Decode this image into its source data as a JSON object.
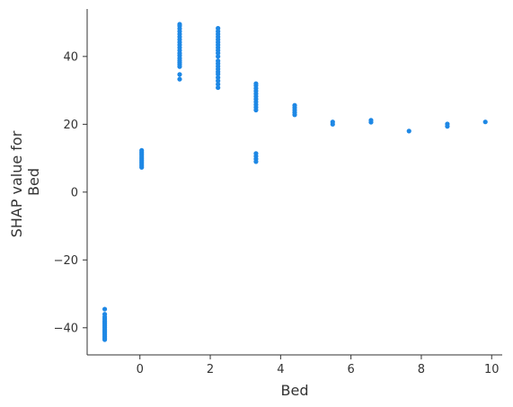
{
  "chart_data": {
    "type": "scatter",
    "xlabel": "Bed",
    "ylabel_lines": [
      "SHAP value for",
      "Bed"
    ],
    "xlim": [
      -1.5,
      10.3
    ],
    "ylim": [
      -48,
      54
    ],
    "xticks": [
      0,
      2,
      4,
      6,
      8,
      10
    ],
    "xtick_labels": [
      "0",
      "2",
      "4",
      "6",
      "8",
      "10"
    ],
    "yticks": [
      -40,
      -20,
      0,
      20,
      40
    ],
    "ytick_labels": [
      "−40",
      "−20",
      "0",
      "20",
      "40"
    ],
    "grid": false,
    "point_color": "#1e88e5",
    "axis_color": "#333333",
    "points": [
      {
        "x": -1.0,
        "y": -34.5
      },
      {
        "x": -1.0,
        "y": -36.0
      },
      {
        "x": -1.0,
        "y": -36.8
      },
      {
        "x": -1.0,
        "y": -37.4
      },
      {
        "x": -1.0,
        "y": -38.0
      },
      {
        "x": -1.0,
        "y": -38.5
      },
      {
        "x": -1.0,
        "y": -39.0
      },
      {
        "x": -1.0,
        "y": -39.5
      },
      {
        "x": -1.0,
        "y": -40.0
      },
      {
        "x": -1.0,
        "y": -40.5
      },
      {
        "x": -1.0,
        "y": -41.0
      },
      {
        "x": -1.0,
        "y": -41.5
      },
      {
        "x": -1.0,
        "y": -42.0
      },
      {
        "x": -1.0,
        "y": -42.5
      },
      {
        "x": -1.0,
        "y": -43.0
      },
      {
        "x": -1.0,
        "y": -43.5
      },
      {
        "x": 0.05,
        "y": 7.3
      },
      {
        "x": 0.05,
        "y": 7.8
      },
      {
        "x": 0.05,
        "y": 8.3
      },
      {
        "x": 0.05,
        "y": 8.8
      },
      {
        "x": 0.05,
        "y": 9.3
      },
      {
        "x": 0.05,
        "y": 9.8
      },
      {
        "x": 0.05,
        "y": 10.3
      },
      {
        "x": 0.05,
        "y": 10.8
      },
      {
        "x": 0.05,
        "y": 11.3
      },
      {
        "x": 0.05,
        "y": 11.8
      },
      {
        "x": 0.05,
        "y": 12.3
      },
      {
        "x": 1.13,
        "y": 33.3
      },
      {
        "x": 1.13,
        "y": 34.7
      },
      {
        "x": 1.13,
        "y": 37.0
      },
      {
        "x": 1.13,
        "y": 37.6
      },
      {
        "x": 1.13,
        "y": 38.2
      },
      {
        "x": 1.13,
        "y": 38.8
      },
      {
        "x": 1.13,
        "y": 39.5
      },
      {
        "x": 1.13,
        "y": 40.3
      },
      {
        "x": 1.13,
        "y": 41.0
      },
      {
        "x": 1.13,
        "y": 41.8
      },
      {
        "x": 1.13,
        "y": 42.6
      },
      {
        "x": 1.13,
        "y": 43.4
      },
      {
        "x": 1.13,
        "y": 44.2
      },
      {
        "x": 1.13,
        "y": 45.0
      },
      {
        "x": 1.13,
        "y": 45.8
      },
      {
        "x": 1.13,
        "y": 46.6
      },
      {
        "x": 1.13,
        "y": 47.4
      },
      {
        "x": 1.13,
        "y": 48.2
      },
      {
        "x": 1.13,
        "y": 49.0
      },
      {
        "x": 1.13,
        "y": 49.5
      },
      {
        "x": 2.22,
        "y": 30.8
      },
      {
        "x": 2.22,
        "y": 31.8
      },
      {
        "x": 2.22,
        "y": 32.8
      },
      {
        "x": 2.22,
        "y": 33.8
      },
      {
        "x": 2.22,
        "y": 34.8
      },
      {
        "x": 2.22,
        "y": 35.5
      },
      {
        "x": 2.22,
        "y": 36.3
      },
      {
        "x": 2.22,
        "y": 37.1
      },
      {
        "x": 2.22,
        "y": 37.9
      },
      {
        "x": 2.22,
        "y": 38.7
      },
      {
        "x": 2.22,
        "y": 40.0
      },
      {
        "x": 2.22,
        "y": 41.0
      },
      {
        "x": 2.22,
        "y": 41.8
      },
      {
        "x": 2.22,
        "y": 42.6
      },
      {
        "x": 2.22,
        "y": 43.4
      },
      {
        "x": 2.22,
        "y": 44.2
      },
      {
        "x": 2.22,
        "y": 45.0
      },
      {
        "x": 2.22,
        "y": 45.8
      },
      {
        "x": 2.22,
        "y": 46.6
      },
      {
        "x": 2.22,
        "y": 47.4
      },
      {
        "x": 2.22,
        "y": 48.3
      },
      {
        "x": 3.3,
        "y": 9.0
      },
      {
        "x": 3.3,
        "y": 9.8
      },
      {
        "x": 3.3,
        "y": 10.6
      },
      {
        "x": 3.3,
        "y": 11.4
      },
      {
        "x": 3.3,
        "y": 24.2
      },
      {
        "x": 3.3,
        "y": 25.0
      },
      {
        "x": 3.3,
        "y": 25.8
      },
      {
        "x": 3.3,
        "y": 26.6
      },
      {
        "x": 3.3,
        "y": 27.4
      },
      {
        "x": 3.3,
        "y": 28.2
      },
      {
        "x": 3.3,
        "y": 29.0
      },
      {
        "x": 3.3,
        "y": 29.8
      },
      {
        "x": 3.3,
        "y": 30.6
      },
      {
        "x": 3.3,
        "y": 31.4
      },
      {
        "x": 3.3,
        "y": 32.0
      },
      {
        "x": 4.4,
        "y": 22.8
      },
      {
        "x": 4.4,
        "y": 23.5
      },
      {
        "x": 4.4,
        "y": 24.2
      },
      {
        "x": 4.4,
        "y": 24.9
      },
      {
        "x": 4.4,
        "y": 25.6
      },
      {
        "x": 5.48,
        "y": 20.0
      },
      {
        "x": 5.48,
        "y": 20.7
      },
      {
        "x": 6.57,
        "y": 20.6
      },
      {
        "x": 6.57,
        "y": 21.2
      },
      {
        "x": 7.65,
        "y": 18.0
      },
      {
        "x": 8.74,
        "y": 19.4
      },
      {
        "x": 8.74,
        "y": 20.1
      },
      {
        "x": 9.82,
        "y": 20.7
      }
    ]
  }
}
